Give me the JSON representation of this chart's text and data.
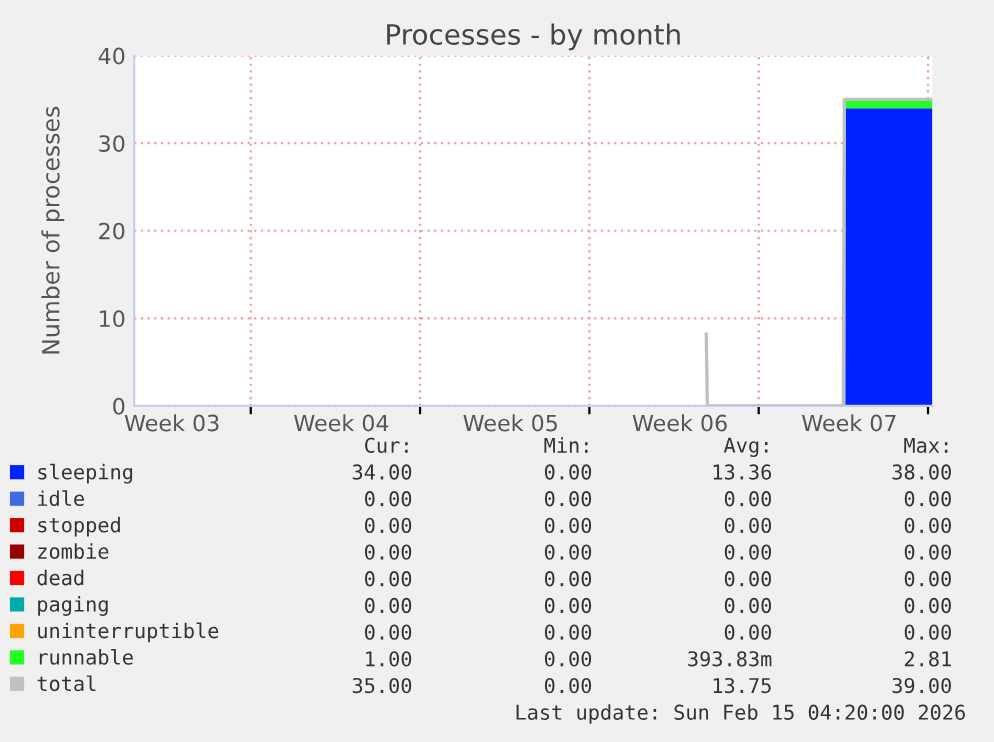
{
  "chart_data": {
    "type": "area",
    "title": "Processes - by month",
    "ylabel": "Number of processes",
    "stacked": true,
    "xlim": [
      "2026-01-13T04:20",
      "2026-02-15T04:20"
    ],
    "xticks": [
      {
        "value": "2026-01-14T18:00",
        "label": "Week 03"
      },
      {
        "value": "2026-01-18",
        "label": null
      },
      {
        "value": "2026-01-21T18:00",
        "label": "Week 04"
      },
      {
        "value": "2026-01-25",
        "label": null
      },
      {
        "value": "2026-01-28T18:00",
        "label": "Week 05"
      },
      {
        "value": "2026-02-01",
        "label": null
      },
      {
        "value": "2026-02-04T18:00",
        "label": "Week 06"
      },
      {
        "value": "2026-02-08",
        "label": null
      },
      {
        "value": "2026-02-11T18:00",
        "label": "Week 07"
      },
      {
        "value": "2026-02-15",
        "label": null
      }
    ],
    "ylim": [
      0,
      40
    ],
    "yticks": [
      0,
      10,
      20,
      30,
      40
    ],
    "grid": true,
    "legend": "bottom",
    "x": [
      "2026-02-11T14:00",
      "2026-02-15T04:20"
    ],
    "series": [
      {
        "name": "sleeping",
        "color": "#0022ff",
        "values": [
          34,
          34
        ]
      },
      {
        "name": "idle",
        "color": "#4169e1",
        "values": [
          null,
          null
        ]
      },
      {
        "name": "stopped",
        "color": "#cc0000",
        "values": [
          null,
          null
        ]
      },
      {
        "name": "zombie",
        "color": "#990000",
        "values": [
          null,
          null
        ]
      },
      {
        "name": "dead",
        "color": "#ff0000",
        "values": [
          null,
          null
        ]
      },
      {
        "name": "paging",
        "color": "#00aaaa",
        "values": [
          null,
          null
        ]
      },
      {
        "name": "uninterruptible",
        "color": "#ffa500",
        "values": [
          null,
          null
        ]
      },
      {
        "name": "runnable",
        "color": "#22ff22",
        "values": [
          1,
          1
        ]
      },
      {
        "name": "total",
        "color": "#c0c0c0",
        "type": "line",
        "x": [
          "2026-02-05T20:00",
          "2026-02-05T21:00",
          "2026-02-11T12:00",
          "2026-02-11T13:00",
          "2026-02-15T04:20"
        ],
        "values": [
          8.2,
          0,
          0,
          35,
          35
        ]
      }
    ],
    "annotations": [
      "Cur:",
      "Min:",
      "Avg:",
      "Max:",
      "34.00",
      "0.00",
      "13.36",
      "38.00",
      "0.00",
      "0.00",
      "0.00",
      "0.00",
      "0.00",
      "0.00",
      "0.00",
      "0.00",
      "0.00",
      "0.00",
      "0.00",
      "0.00",
      "0.00",
      "0.00",
      "0.00",
      "0.00",
      "0.00",
      "0.00",
      "0.00",
      "0.00",
      "0.00",
      "0.00",
      "0.00",
      "0.00",
      "1.00",
      "0.00",
      "393.83m",
      "2.81",
      "35.00",
      "0.00",
      "13.75",
      "39.00",
      "Last update: Sun Feb 15 04:20:00 2026"
    ]
  }
}
